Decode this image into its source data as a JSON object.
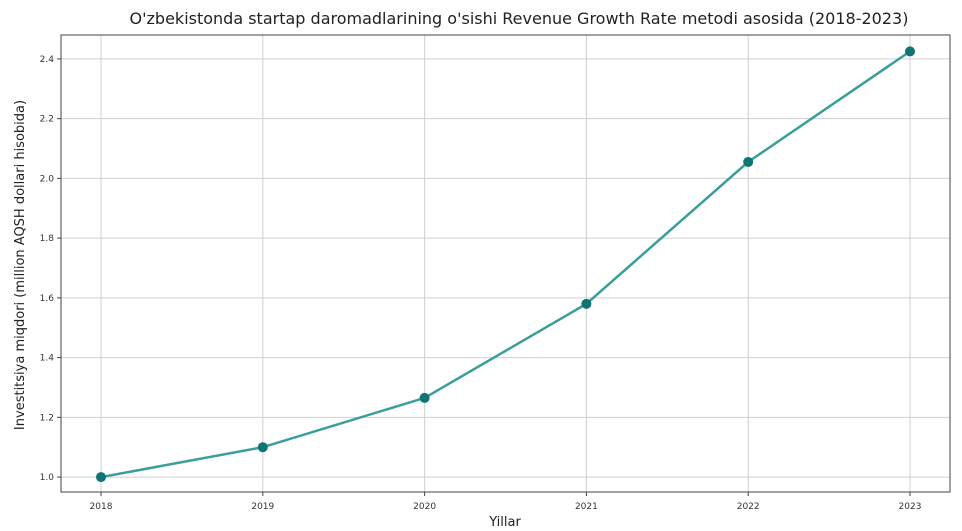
{
  "chart_data": {
    "type": "line",
    "title": "O'zbekistonda startap daromadlarining o'sishi Revenue Growth Rate metodi asosida (2018-2023)",
    "xlabel": "Yillar",
    "ylabel": "Investitsiya miqdori (million AQSH dollari hisobida)",
    "categories": [
      "2018",
      "2019",
      "2020",
      "2021",
      "2022",
      "2023"
    ],
    "x_tick_labels": [
      "2018",
      "2019",
      "2020",
      "2021",
      "2022",
      "2023"
    ],
    "y_tick_labels": [
      "1.0",
      "1.2",
      "1.4",
      "1.6",
      "1.8",
      "2.0",
      "2.2",
      "2.4"
    ],
    "y_ticks": [
      1.0,
      1.2,
      1.4,
      1.6,
      1.8,
      2.0,
      2.2,
      2.4
    ],
    "series": [
      {
        "values": [
          1.0,
          1.1,
          1.265,
          1.58,
          2.055,
          2.425
        ]
      }
    ],
    "ylim": [
      0.95,
      2.48
    ],
    "grid": true,
    "legend": "none",
    "line_color": "#3a9e9a",
    "marker_color": "#0f7574"
  }
}
